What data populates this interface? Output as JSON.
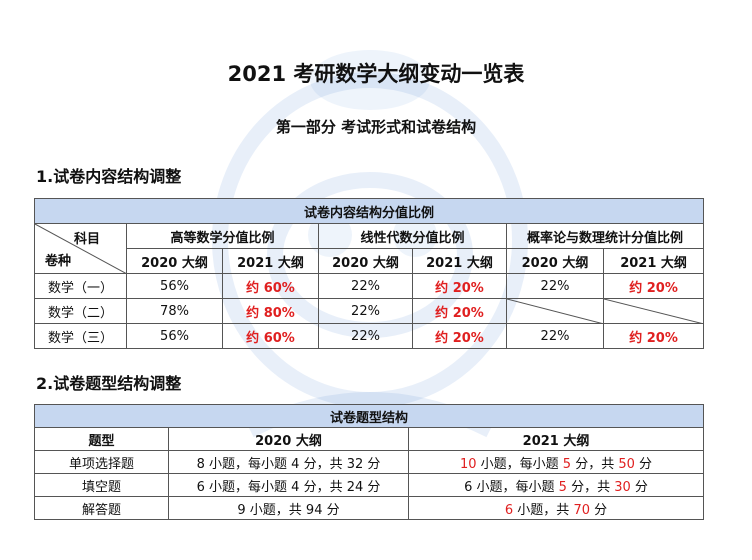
{
  "page": {
    "title": "2021 考研数学大纲变动一览表",
    "part_title": "第一部分  考试形式和试卷结构"
  },
  "section1": {
    "heading": "1.试卷内容结构调整",
    "table_title": "试卷内容结构分值比例",
    "corner_top": "科目",
    "corner_bottom": "卷种",
    "groups": [
      "高等数学分值比例",
      "线性代数分值比例",
      "概率论与数理统计分值比例"
    ],
    "years": [
      "2020 大纲",
      "2021 大纲"
    ],
    "rows": [
      {
        "name": "数学（一）",
        "math_2020": "56%",
        "math_2021": "约 60%",
        "la_2020": "22%",
        "la_2021": "约 20%",
        "prob_2020": "22%",
        "prob_2021": "约 20%"
      },
      {
        "name": "数学（二）",
        "math_2020": "78%",
        "math_2021": "约 80%",
        "la_2020": "22%",
        "la_2021": "约 20%",
        "prob_2020": "",
        "prob_2021": ""
      },
      {
        "name": "数学（三）",
        "math_2020": "56%",
        "math_2021": "约 60%",
        "la_2020": "22%",
        "la_2021": "约 20%",
        "prob_2020": "22%",
        "prob_2021": "约 20%"
      }
    ]
  },
  "section2": {
    "heading": "2.试卷题型结构调整",
    "table_title": "试卷题型结构",
    "col_type": "题型",
    "col_2020": "2020 大纲",
    "col_2021": "2021 大纲",
    "rows": [
      {
        "type": "单项选择题",
        "y2020": "8 小题，每小题 4 分，共 32 分",
        "y2021_parts": [
          "10",
          " 小题，每小题 ",
          "5",
          " 分，共 ",
          "50",
          " 分"
        ]
      },
      {
        "type": "填空题",
        "y2020": "6 小题，每小题 4 分，共 24 分",
        "y2021_parts": [
          "6",
          " 小题，每小题 ",
          "5",
          " 分，共 ",
          "30",
          " 分"
        ]
      },
      {
        "type": "解答题",
        "y2020": "9 小题，共 94 分",
        "y2021_parts": [
          "6",
          " 小题，共 ",
          "70",
          " 分"
        ]
      }
    ]
  },
  "colors": {
    "header_bg": "#c6d7f0",
    "highlight": "#e02020",
    "watermark": "#5b8fd6"
  },
  "watermark": {
    "icon": "mascot-watermark-icon"
  }
}
